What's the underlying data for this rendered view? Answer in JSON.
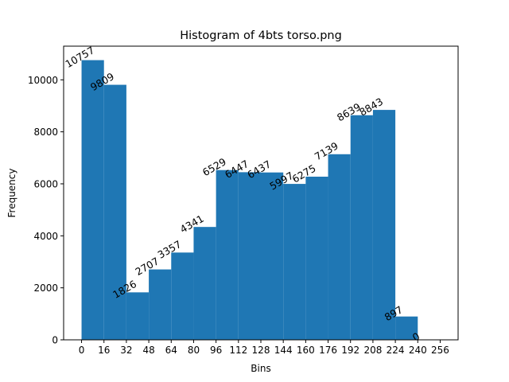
{
  "chart_data": {
    "type": "bar",
    "title": "Histogram of 4bts torso.png",
    "xlabel": "Bins",
    "ylabel": "Frequency",
    "bin_edges": [
      0,
      16,
      32,
      48,
      64,
      80,
      96,
      112,
      128,
      144,
      160,
      176,
      192,
      208,
      224,
      240,
      256
    ],
    "values": [
      10757,
      9809,
      1826,
      2707,
      3357,
      4341,
      6529,
      6447,
      6437,
      5997,
      6275,
      7139,
      8639,
      8843,
      897,
      0
    ],
    "data_labels": [
      "10757",
      "9809",
      "1826",
      "2707",
      "3357",
      "4341",
      "6529",
      "6447",
      "6437",
      "5997",
      "6275",
      "7139",
      "8639",
      "8843",
      "897",
      "0"
    ],
    "xticks": [
      "0",
      "16",
      "32",
      "48",
      "64",
      "80",
      "96",
      "112",
      "128",
      "144",
      "160",
      "176",
      "192",
      "208",
      "224",
      "240",
      "256"
    ],
    "yticks": [
      "0",
      "2000",
      "4000",
      "6000",
      "8000",
      "10000"
    ],
    "xlim": [
      -12.8,
      268.8
    ],
    "ylim": [
      0,
      11294.85
    ],
    "bar_color": "#1f77b4",
    "grid": false,
    "legend": "none"
  }
}
